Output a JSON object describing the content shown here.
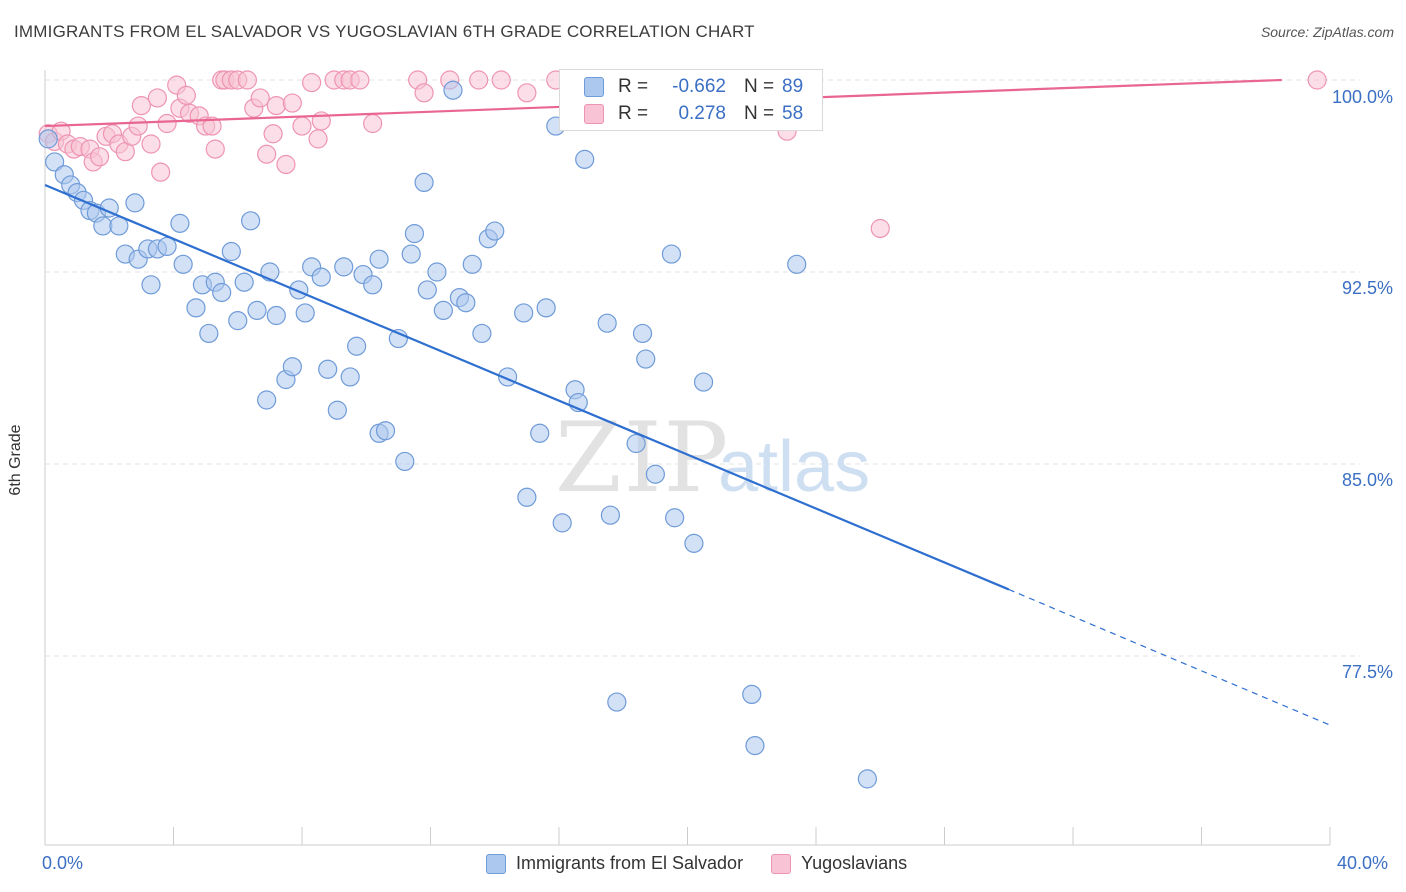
{
  "header": {
    "title": "IMMIGRANTS FROM EL SALVADOR VS YUGOSLAVIAN 6TH GRADE CORRELATION CHART",
    "source": "Source: ZipAtlas.com"
  },
  "watermark": {
    "zip": "ZIP",
    "atlas": "atlas"
  },
  "legend": {
    "rows": [
      {
        "r_label": "R =",
        "r_value": "-0.662",
        "n_label": "N =",
        "n_value": "89"
      },
      {
        "r_label": "R =",
        "r_value": "0.278",
        "n_label": "N =",
        "n_value": "58"
      }
    ]
  },
  "bottom_legend": [
    "Immigrants from El Salvador",
    "Yugoslavians"
  ],
  "x_axis": {
    "min_label": "0.0%",
    "max_label": "40.0%"
  },
  "colors": {
    "blue_fill": "#adc8ee",
    "blue_stroke": "#6f9bd8",
    "blue_line": "#2e6fd0",
    "pink_fill": "#f8c3d4",
    "pink_stroke": "#ee94b3",
    "pink_line": "#e8668f",
    "tick_text": "#3b6fc4",
    "grid": "#e3e3e3"
  },
  "chart_data": {
    "type": "scatter",
    "title": "IMMIGRANTS FROM EL SALVADOR VS YUGOSLAVIAN 6TH GRADE CORRELATION CHART",
    "xlabel": "",
    "ylabel": "6th Grade",
    "xlim": [
      0,
      40
    ],
    "ylim": [
      71.0,
      100.5
    ],
    "y_ticks": [
      77.5,
      85.0,
      92.5,
      100.0
    ],
    "y_tick_labels": [
      "77.5%",
      "85.0%",
      "92.5%",
      "100.0%"
    ],
    "grid": true,
    "legend_placement": "top-center",
    "series": [
      {
        "name": "Immigrants from El Salvador",
        "color": "#6f9bd8",
        "trend": {
          "x": [
            0,
            30.0
          ],
          "y": [
            95.9,
            80.1
          ],
          "dashed_to": [
            40.0,
            74.8
          ]
        },
        "points": [
          [
            0.1,
            97.7
          ],
          [
            0.3,
            96.8
          ],
          [
            0.6,
            96.3
          ],
          [
            0.8,
            95.9
          ],
          [
            1.0,
            95.6
          ],
          [
            1.2,
            95.3
          ],
          [
            1.4,
            94.9
          ],
          [
            1.6,
            94.8
          ],
          [
            1.8,
            94.3
          ],
          [
            2.0,
            95.0
          ],
          [
            2.3,
            94.3
          ],
          [
            2.5,
            93.2
          ],
          [
            2.8,
            95.2
          ],
          [
            2.9,
            93.0
          ],
          [
            3.2,
            93.4
          ],
          [
            3.5,
            93.4
          ],
          [
            3.8,
            93.5
          ],
          [
            3.3,
            92.0
          ],
          [
            4.2,
            94.4
          ],
          [
            4.3,
            92.8
          ],
          [
            4.7,
            91.1
          ],
          [
            4.9,
            92.0
          ],
          [
            5.1,
            90.1
          ],
          [
            5.3,
            92.1
          ],
          [
            5.5,
            91.7
          ],
          [
            5.8,
            93.3
          ],
          [
            6.0,
            90.6
          ],
          [
            6.2,
            92.1
          ],
          [
            6.4,
            94.5
          ],
          [
            6.6,
            91.0
          ],
          [
            6.9,
            87.5
          ],
          [
            7.0,
            92.5
          ],
          [
            7.2,
            90.8
          ],
          [
            7.5,
            88.3
          ],
          [
            7.7,
            88.8
          ],
          [
            7.9,
            91.8
          ],
          [
            8.1,
            90.9
          ],
          [
            8.3,
            92.7
          ],
          [
            8.6,
            92.3
          ],
          [
            8.8,
            88.7
          ],
          [
            9.1,
            87.1
          ],
          [
            9.3,
            92.7
          ],
          [
            9.5,
            88.4
          ],
          [
            9.7,
            89.6
          ],
          [
            9.9,
            92.4
          ],
          [
            10.2,
            92.0
          ],
          [
            10.4,
            93.0
          ],
          [
            10.4,
            86.2
          ],
          [
            10.6,
            86.3
          ],
          [
            11.0,
            89.9
          ],
          [
            11.2,
            85.1
          ],
          [
            11.4,
            93.2
          ],
          [
            11.5,
            94.0
          ],
          [
            11.8,
            96.0
          ],
          [
            11.9,
            91.8
          ],
          [
            12.2,
            92.5
          ],
          [
            12.4,
            91.0
          ],
          [
            12.7,
            99.6
          ],
          [
            12.9,
            91.5
          ],
          [
            13.1,
            91.3
          ],
          [
            13.3,
            92.8
          ],
          [
            13.6,
            90.1
          ],
          [
            13.8,
            93.8
          ],
          [
            14.0,
            94.1
          ],
          [
            14.4,
            88.4
          ],
          [
            14.9,
            90.9
          ],
          [
            15.4,
            86.2
          ],
          [
            15.0,
            83.7
          ],
          [
            15.6,
            91.1
          ],
          [
            15.9,
            98.2
          ],
          [
            16.1,
            82.7
          ],
          [
            16.5,
            87.9
          ],
          [
            16.6,
            87.4
          ],
          [
            16.8,
            96.9
          ],
          [
            17.5,
            90.5
          ],
          [
            17.6,
            83.0
          ],
          [
            17.8,
            75.7
          ],
          [
            18.4,
            85.8
          ],
          [
            18.6,
            90.1
          ],
          [
            18.7,
            89.1
          ],
          [
            19.0,
            84.6
          ],
          [
            19.5,
            93.2
          ],
          [
            19.6,
            82.9
          ],
          [
            20.2,
            81.9
          ],
          [
            20.5,
            88.2
          ],
          [
            22.0,
            76.0
          ],
          [
            22.1,
            74.0
          ],
          [
            23.4,
            92.8
          ],
          [
            25.6,
            72.7
          ]
        ]
      },
      {
        "name": "Yugoslavians",
        "color": "#ee94b3",
        "trend": {
          "x": [
            0,
            38.5
          ],
          "y": [
            98.2,
            100.0
          ]
        },
        "points": [
          [
            0.1,
            97.9
          ],
          [
            0.3,
            97.6
          ],
          [
            0.5,
            98.0
          ],
          [
            0.7,
            97.5
          ],
          [
            0.9,
            97.3
          ],
          [
            1.1,
            97.4
          ],
          [
            1.4,
            97.3
          ],
          [
            1.5,
            96.8
          ],
          [
            1.7,
            97.0
          ],
          [
            1.9,
            97.8
          ],
          [
            2.1,
            97.9
          ],
          [
            2.3,
            97.5
          ],
          [
            2.5,
            97.2
          ],
          [
            2.7,
            97.8
          ],
          [
            2.9,
            98.2
          ],
          [
            3.0,
            99.0
          ],
          [
            3.3,
            97.5
          ],
          [
            3.5,
            99.3
          ],
          [
            3.6,
            96.4
          ],
          [
            3.8,
            98.3
          ],
          [
            4.1,
            99.8
          ],
          [
            4.2,
            98.9
          ],
          [
            4.4,
            99.4
          ],
          [
            4.5,
            98.7
          ],
          [
            4.8,
            98.6
          ],
          [
            5.0,
            98.2
          ],
          [
            5.2,
            98.2
          ],
          [
            5.3,
            97.3
          ],
          [
            5.5,
            100.0
          ],
          [
            5.6,
            100.0
          ],
          [
            5.8,
            100.0
          ],
          [
            6.0,
            100.0
          ],
          [
            6.3,
            100.0
          ],
          [
            6.5,
            98.9
          ],
          [
            6.7,
            99.3
          ],
          [
            6.9,
            97.1
          ],
          [
            7.1,
            97.9
          ],
          [
            7.2,
            99.0
          ],
          [
            7.5,
            96.7
          ],
          [
            7.7,
            99.1
          ],
          [
            8.0,
            98.2
          ],
          [
            8.3,
            99.9
          ],
          [
            8.5,
            97.7
          ],
          [
            8.6,
            98.4
          ],
          [
            9.0,
            100.0
          ],
          [
            9.3,
            100.0
          ],
          [
            9.5,
            100.0
          ],
          [
            9.8,
            100.0
          ],
          [
            10.2,
            98.3
          ],
          [
            11.6,
            100.0
          ],
          [
            11.8,
            99.5
          ],
          [
            12.6,
            100.0
          ],
          [
            13.5,
            100.0
          ],
          [
            14.2,
            100.0
          ],
          [
            15.0,
            99.5
          ],
          [
            15.9,
            100.0
          ],
          [
            23.1,
            98.0
          ],
          [
            26.0,
            94.2
          ],
          [
            39.6,
            100.0
          ]
        ]
      }
    ]
  }
}
